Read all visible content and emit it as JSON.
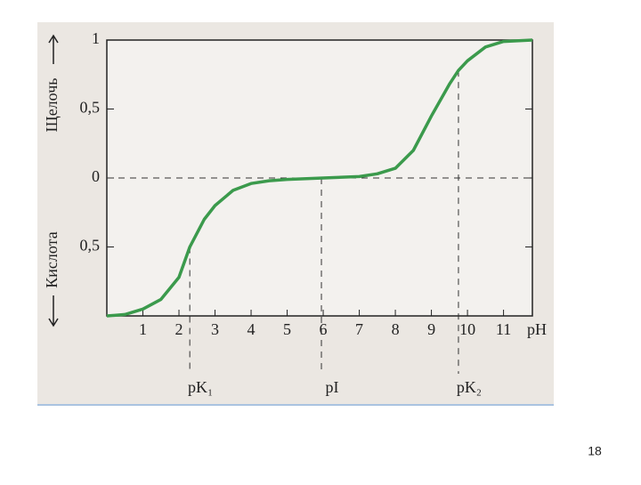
{
  "chart_data": {
    "type": "line",
    "x": [
      0,
      0.5,
      1,
      1.5,
      2,
      2.3,
      2.7,
      3,
      3.5,
      4,
      4.5,
      5,
      6,
      7,
      7.5,
      8,
      8.5,
      9,
      9.5,
      9.75,
      10,
      10.5,
      11,
      11.8
    ],
    "values": [
      -1,
      -0.99,
      -0.95,
      -0.88,
      -0.72,
      -0.5,
      -0.3,
      -0.2,
      -0.09,
      -0.04,
      -0.02,
      -0.01,
      0,
      0.01,
      0.03,
      0.07,
      0.2,
      0.45,
      0.68,
      0.78,
      0.85,
      0.95,
      0.99,
      1
    ],
    "color": "#3b9a4c",
    "xlim": [
      0,
      11.8
    ],
    "ylim": [
      -1,
      1
    ],
    "xticks": [
      1,
      2,
      3,
      4,
      5,
      6,
      7,
      8,
      9,
      10,
      11
    ],
    "yticks": [
      {
        "value": -0.5,
        "label": "0,5"
      },
      0,
      {
        "value": 0.5,
        "label": "0,5"
      },
      1
    ],
    "x_label": "pH",
    "y_label_upper": "Щелочь",
    "y_label_lower": "Кислота",
    "markers": [
      {
        "x": 2.3,
        "y": -0.5,
        "label": "pK₁"
      },
      {
        "x": 5.95,
        "y": 0,
        "label": "pI"
      },
      {
        "x": 9.75,
        "y": 0.78,
        "label": "pK₂"
      }
    ]
  },
  "page_number": "18"
}
